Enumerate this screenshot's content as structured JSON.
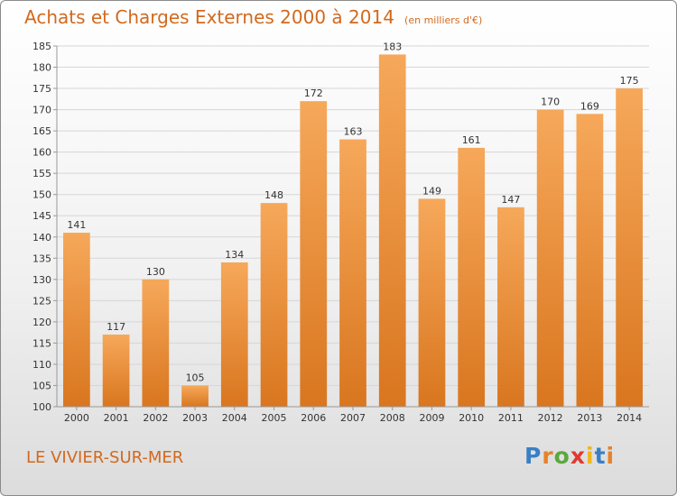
{
  "header": {
    "title": "Achats et Charges Externes 2000 à 2014",
    "unit": "(en milliers d'€)"
  },
  "footer": {
    "location": "LE VIVIER-SUR-MER"
  },
  "logo": {
    "text": "Proxiti",
    "letters": [
      "P",
      "r",
      "o",
      "x",
      "i",
      "t",
      "i"
    ],
    "colors": [
      "#3a7fc4",
      "#e8812a",
      "#5aa93c",
      "#e03a2f",
      "#f2b51d",
      "#3a7fc4",
      "#e8812a"
    ]
  },
  "colors": {
    "bar_top": "#f6a85a",
    "bar_bottom": "#d9761f",
    "grid": "#d6d6d6",
    "axis": "#999999",
    "accent": "#d2691e"
  },
  "chart_data": {
    "type": "bar",
    "title": "Achats et Charges Externes 2000 à 2014",
    "subtitle": "(en milliers d'€)",
    "categories": [
      "2000",
      "2001",
      "2002",
      "2003",
      "2004",
      "2005",
      "2006",
      "2007",
      "2008",
      "2009",
      "2010",
      "2011",
      "2012",
      "2013",
      "2014"
    ],
    "values": [
      141,
      117,
      130,
      105,
      134,
      148,
      172,
      163,
      183,
      149,
      161,
      147,
      170,
      169,
      175
    ],
    "ylim": [
      100,
      185
    ],
    "yticks": [
      100,
      105,
      110,
      115,
      120,
      125,
      130,
      135,
      140,
      145,
      150,
      155,
      160,
      165,
      170,
      175,
      180,
      185
    ],
    "xlabel": "",
    "ylabel": "",
    "grid": true,
    "legend": "none"
  }
}
